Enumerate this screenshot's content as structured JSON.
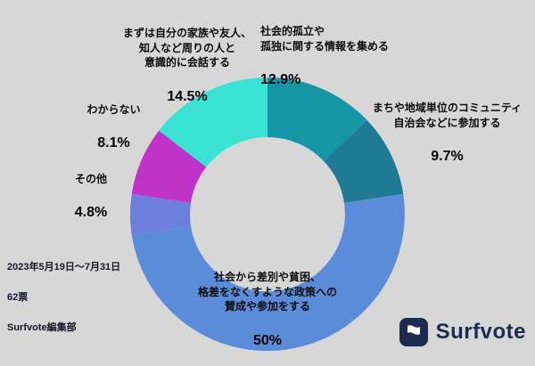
{
  "colors": {
    "background": "#d7d7d7",
    "brand_navy": "#1d2b4f",
    "text": "#0d0d0d"
  },
  "chart_data": {
    "type": "pie",
    "donut": true,
    "title": "",
    "legend_position": "around",
    "slices": [
      {
        "label": "社会的孤立や\n孤独に関する情報を集める",
        "display": "12.9%",
        "value": 12.9,
        "color": "#1695a5"
      },
      {
        "label": "まちや地域単位のコミュニティ\n自治会などに参加する",
        "display": "9.7%",
        "value": 9.7,
        "color": "#1f7a96"
      },
      {
        "label": "社会から差別や貧困、\n格差をなくすような政策への\n賛成や参加をする",
        "display": "50%",
        "value": 50,
        "color": "#5b8cd9"
      },
      {
        "label": "その他",
        "display": "4.8%",
        "value": 4.8,
        "color": "#6d7fdd"
      },
      {
        "label": "わからない",
        "display": "8.1%",
        "value": 8.1,
        "color": "#bf33c9"
      },
      {
        "label": "まずは自分の家族や友人、\n知人など周りの人と\n意識的に会話する",
        "display": "14.5%",
        "value": 14.5,
        "color": "#39e3d3"
      }
    ]
  },
  "footer": {
    "period": "2023年5月19日～7月31日",
    "votes": "62票",
    "credit": "Surfvote編集部"
  },
  "logo": {
    "text": "Surfvote"
  }
}
